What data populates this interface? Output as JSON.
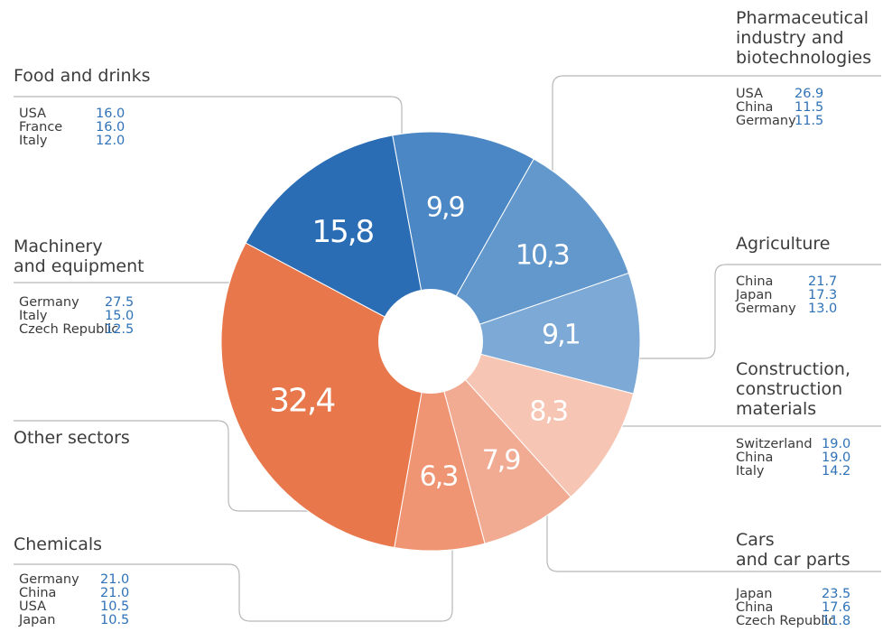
{
  "chart_data": {
    "type": "pie",
    "subtype": "donut",
    "slices": [
      {
        "label": "Food and drinks",
        "value": 9.9,
        "display": "9,9",
        "color": "#4a87c4",
        "label_color": "#ffffff"
      },
      {
        "label": "Pharmaceutical industry and biotechnologies",
        "value": 10.3,
        "display": "10,3",
        "color": "#6398cc",
        "label_color": "#ffffff"
      },
      {
        "label": "Agriculture",
        "value": 9.1,
        "display": "9,1",
        "color": "#7ca9d6",
        "label_color": "#ffffff"
      },
      {
        "label": "Construction, construction materials",
        "value": 8.3,
        "display": "8,3",
        "color": "#f6c5b3",
        "label_color": "#ffffff"
      },
      {
        "label": "Cars and car parts",
        "value": 7.9,
        "display": "7,9",
        "color": "#f2ab93",
        "label_color": "#ffffff"
      },
      {
        "label": "Chemicals",
        "value": 6.3,
        "display": "6,3",
        "color": "#ef9574",
        "label_color": "#ffffff"
      },
      {
        "label": "Other sectors",
        "value": 32.4,
        "display": "32,4",
        "color": "#e8774c",
        "label_color": "#ffffff"
      },
      {
        "label": "Machinery and equipment",
        "value": 15.8,
        "display": "15,8",
        "color": "#2a6db5",
        "label_color": "#ffffff"
      }
    ],
    "categories": [
      {
        "id": "food",
        "title": [
          "Food and drinks"
        ],
        "countries": [
          [
            "USA",
            "16.0"
          ],
          [
            "France",
            "16.0"
          ],
          [
            "Italy",
            "12.0"
          ]
        ]
      },
      {
        "id": "pharma",
        "title": [
          "Pharmaceutical",
          "industry and",
          "biotechnologies"
        ],
        "countries": [
          [
            "USA",
            "26.9"
          ],
          [
            "China",
            "11.5"
          ],
          [
            "Germany",
            "11.5"
          ]
        ]
      },
      {
        "id": "agri",
        "title": [
          "Agriculture"
        ],
        "countries": [
          [
            "China",
            "21.7"
          ],
          [
            "Japan",
            "17.3"
          ],
          [
            "Germany",
            "13.0"
          ]
        ]
      },
      {
        "id": "constr",
        "title": [
          "Construction,",
          "construction",
          "materials"
        ],
        "countries": [
          [
            "Switzerland",
            "19.0"
          ],
          [
            "China",
            "19.0"
          ],
          [
            "Italy",
            "14.2"
          ]
        ]
      },
      {
        "id": "cars",
        "title": [
          "Cars",
          "and car parts"
        ],
        "countries": [
          [
            "Japan",
            "23.5"
          ],
          [
            "China",
            "17.6"
          ],
          [
            "Czech Republic",
            "11.8"
          ]
        ]
      },
      {
        "id": "chem",
        "title": [
          "Chemicals"
        ],
        "countries": [
          [
            "Germany",
            "21.0"
          ],
          [
            "China",
            "21.0"
          ],
          [
            "USA",
            "10.5"
          ],
          [
            "Japan",
            "10.5"
          ]
        ]
      },
      {
        "id": "other",
        "title": [
          "Other sectors"
        ],
        "countries": []
      },
      {
        "id": "mach",
        "title": [
          "Machinery",
          "and equipment"
        ],
        "countries": [
          [
            "Germany",
            "27.5"
          ],
          [
            "Italy",
            "15.0"
          ],
          [
            "Czech Republic",
            "12.5"
          ]
        ]
      }
    ],
    "leader_color": "#b8b8b8"
  }
}
